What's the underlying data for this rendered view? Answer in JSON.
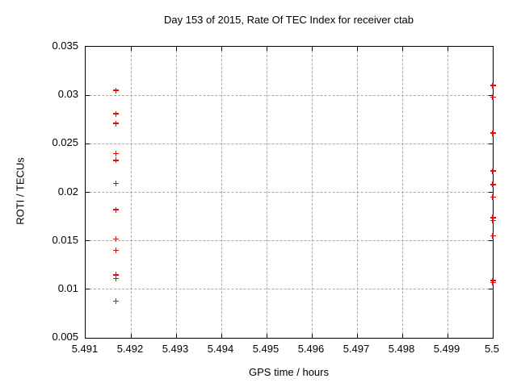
{
  "chart_data": {
    "type": "scatter",
    "title": "Day 153 of 2015, Rate Of TEC Index for receiver ctab",
    "xlabel": "GPS time / hours",
    "ylabel": "ROTI / TECUs",
    "xlim": [
      5.491,
      5.5
    ],
    "ylim": [
      0.005,
      0.035
    ],
    "xtick_labels": [
      "5.491",
      "5.492",
      "5.493",
      "5.494",
      "5.495",
      "5.496",
      "5.497",
      "5.498",
      "5.499",
      "5.5"
    ],
    "ytick_labels": [
      "0.005",
      "0.01",
      "0.015",
      "0.02",
      "0.025",
      "0.03",
      "0.035"
    ],
    "grid": true,
    "legend_position": "none",
    "marker_shape": "plus",
    "marker_color": "#ff0000",
    "grid_color": "#a9a9a9",
    "axis_color": "#000000",
    "background_color": "#ffffff",
    "series": [
      {
        "color": "#ff0000",
        "points": [
          [
            5.49167,
            0.0305
          ],
          [
            5.49167,
            0.0281
          ],
          [
            5.49167,
            0.0271
          ],
          [
            5.49167,
            0.024
          ],
          [
            5.49167,
            0.0233
          ],
          [
            5.49167,
            0.0209
          ],
          [
            5.49167,
            0.0182
          ],
          [
            5.49167,
            0.0152
          ],
          [
            5.49167,
            0.014
          ],
          [
            5.49167,
            0.0115
          ],
          [
            5.49167,
            0.0111
          ],
          [
            5.49167,
            0.0088
          ],
          [
            5.5,
            0.031
          ],
          [
            5.5,
            0.0298
          ],
          [
            5.5,
            0.0261
          ],
          [
            5.5,
            0.0222
          ],
          [
            5.5,
            0.0208
          ],
          [
            5.5,
            0.0195
          ],
          [
            5.5,
            0.0174
          ],
          [
            5.5,
            0.0171
          ],
          [
            5.5,
            0.0155
          ],
          [
            5.5,
            0.0109
          ],
          [
            5.5,
            0.0107
          ]
        ]
      }
    ]
  }
}
